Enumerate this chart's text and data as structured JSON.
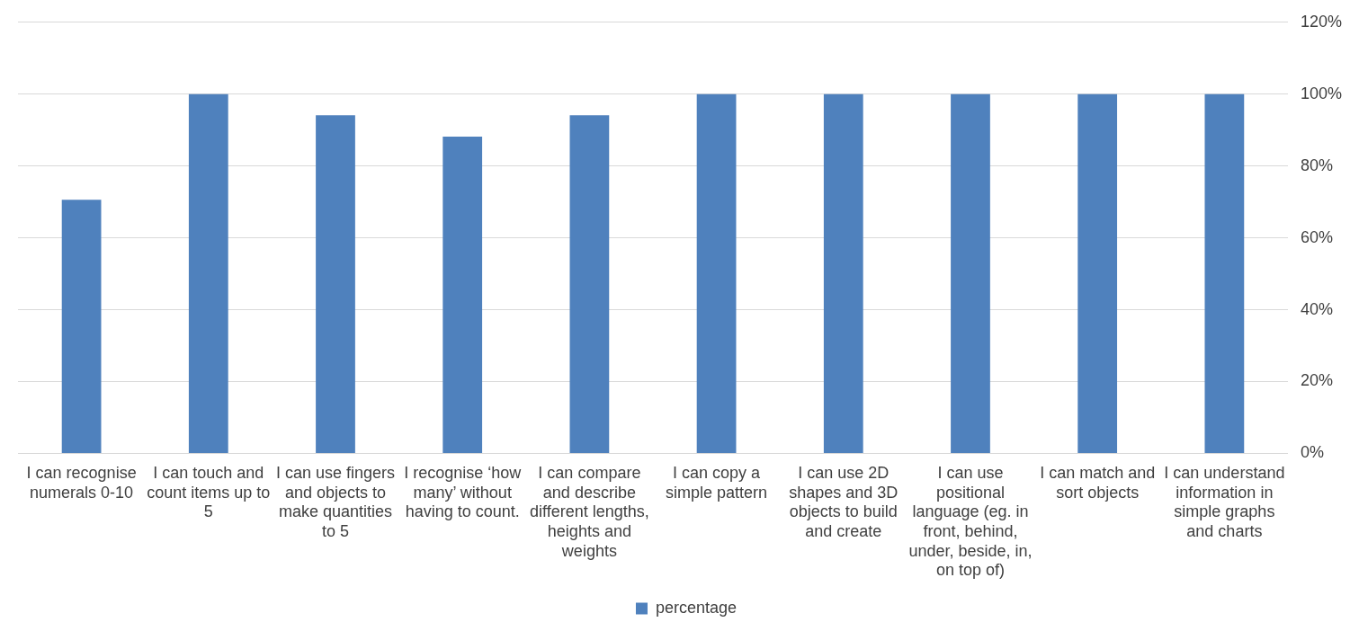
{
  "chart_data": {
    "type": "bar",
    "categories": [
      "I can recognise numerals 0-10",
      "I can touch and count items up to 5",
      "I can use fingers and objects to make quantities to 5",
      "I recognise ‘how many’ without having to count.",
      "I can compare and describe different lengths, heights and weights",
      "I can copy a simple pattern",
      "I can use 2D shapes and 3D objects to build and create",
      "I can use positional language (eg. in front, behind, under, beside, in, on top of)",
      "I can match and sort objects",
      "I can understand information in simple graphs and charts"
    ],
    "series": [
      {
        "name": "percentage",
        "color": "#4f81bd",
        "values": [
          70.6,
          100,
          94.1,
          88.2,
          94.1,
          100,
          100,
          100,
          100,
          100
        ]
      }
    ],
    "ylim": [
      0,
      120
    ],
    "yticks": [
      {
        "value": 0,
        "label": "0%"
      },
      {
        "value": 20,
        "label": "20%"
      },
      {
        "value": 40,
        "label": "40%"
      },
      {
        "value": 60,
        "label": "60%"
      },
      {
        "value": 80,
        "label": "80%"
      },
      {
        "value": 100,
        "label": "100%"
      },
      {
        "value": 120,
        "label": "120%"
      }
    ],
    "grid": "y",
    "legend": "bottom"
  }
}
